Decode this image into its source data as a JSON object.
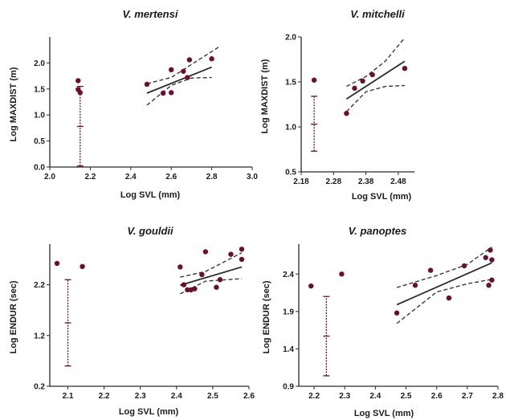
{
  "chart_data": [
    {
      "type": "scatter",
      "title": "V. mertensi",
      "xlabel": "Log SVL (mm)",
      "ylabel": "Log MAXDIST (m)",
      "xlim": [
        2.0,
        3.0
      ],
      "ylim": [
        0.0,
        2.5
      ],
      "xticks": [
        "2.0",
        "2.2",
        "2.4",
        "2.6",
        "2.8",
        "3.0"
      ],
      "yticks": [
        "0.0",
        "0.5",
        "1.0",
        "1.5",
        "2.0"
      ],
      "x": [
        2.48,
        2.56,
        2.6,
        2.6,
        2.66,
        2.68,
        2.69,
        2.8
      ],
      "y": [
        1.59,
        1.42,
        1.43,
        1.87,
        1.84,
        1.72,
        2.06,
        2.08
      ],
      "outlier_x": [
        2.14,
        2.14,
        2.15
      ],
      "outlier_y": [
        1.66,
        1.49,
        1.43
      ],
      "fit": {
        "x": [
          2.48,
          2.8
        ],
        "y": [
          1.42,
          1.92
        ]
      },
      "ci_upper": [
        [
          2.48,
          1.6
        ],
        [
          2.6,
          1.72
        ],
        [
          2.7,
          1.97
        ],
        [
          2.84,
          2.32
        ]
      ],
      "ci_lower": [
        [
          2.48,
          1.19
        ],
        [
          2.6,
          1.57
        ],
        [
          2.7,
          1.71
        ],
        [
          2.8,
          1.72
        ]
      ],
      "errorbar": {
        "x": 2.15,
        "mean": 0.78,
        "low": 0.02,
        "high": 1.55
      }
    },
    {
      "type": "scatter",
      "title": "V. mitchelli",
      "xlabel": "Log SVL (mm)",
      "ylabel": "Log MAXDIST (m)",
      "xlim": [
        2.18,
        2.53
      ],
      "ylim": [
        0.5,
        2.0
      ],
      "xticks": [
        "2.18",
        "2.28",
        "2.38",
        "2.48"
      ],
      "xtick_values": [
        2.18,
        2.28,
        2.38,
        2.48
      ],
      "yticks": [
        "0.5",
        "1.0",
        "1.5",
        "2.0"
      ],
      "x": [
        2.32,
        2.345,
        2.37,
        2.4,
        2.5
      ],
      "y": [
        1.15,
        1.43,
        1.51,
        1.58,
        1.65
      ],
      "outlier_x": [
        2.22
      ],
      "outlier_y": [
        1.52
      ],
      "fit": {
        "x": [
          2.32,
          2.5
        ],
        "y": [
          1.31,
          1.73
        ]
      },
      "ci_upper": [
        [
          2.32,
          1.45
        ],
        [
          2.38,
          1.56
        ],
        [
          2.44,
          1.73
        ],
        [
          2.5,
          1.99
        ]
      ],
      "ci_lower": [
        [
          2.32,
          1.17
        ],
        [
          2.38,
          1.39
        ],
        [
          2.44,
          1.45
        ],
        [
          2.5,
          1.46
        ]
      ],
      "errorbar": {
        "x": 2.22,
        "mean": 1.03,
        "low": 0.73,
        "high": 1.34
      }
    },
    {
      "type": "scatter",
      "title": "V. gouldii",
      "xlabel": "Log SVL (mm)",
      "ylabel": "Log ENDUR (sec)",
      "xlim": [
        2.05,
        2.6
      ],
      "ylim": [
        0.2,
        3.0
      ],
      "xticks": [
        "2.1",
        "2.2",
        "2.3",
        "2.4",
        "2.5",
        "2.6"
      ],
      "yticks": [
        "0.2",
        "1.2",
        "2.2"
      ],
      "ytick_values": [
        0.2,
        1.2,
        2.2
      ],
      "x": [
        2.41,
        2.42,
        2.43,
        2.44,
        2.45,
        2.47,
        2.48,
        2.51,
        2.52,
        2.55,
        2.58,
        2.58
      ],
      "y": [
        2.55,
        2.2,
        2.1,
        2.1,
        2.12,
        2.4,
        2.85,
        2.15,
        2.3,
        2.8,
        2.7,
        2.9
      ],
      "outlier_x": [
        2.07,
        2.14
      ],
      "outlier_y": [
        2.62,
        2.56
      ],
      "fit": {
        "x": [
          2.41,
          2.58
        ],
        "y": [
          2.19,
          2.55
        ]
      },
      "ci_upper": [
        [
          2.41,
          2.35
        ],
        [
          2.48,
          2.46
        ],
        [
          2.58,
          2.83
        ]
      ],
      "ci_lower": [
        [
          2.41,
          2.02
        ],
        [
          2.48,
          2.27
        ],
        [
          2.58,
          2.32
        ]
      ],
      "errorbar": {
        "x": 2.1,
        "mean": 1.45,
        "low": 0.6,
        "high": 2.3
      }
    },
    {
      "type": "scatter",
      "title": "V. panoptes",
      "xlabel": "Log SVL (mm)",
      "ylabel": "Log ENDUR (sec)",
      "xlim": [
        2.15,
        2.8
      ],
      "ylim": [
        0.9,
        2.8
      ],
      "xticks": [
        "2.2",
        "2.3",
        "2.4",
        "2.5",
        "2.6",
        "2.7",
        "2.8"
      ],
      "yticks": [
        "0.9",
        "1.4",
        "1.9",
        "2.4"
      ],
      "ytick_values": [
        0.9,
        1.4,
        1.9,
        2.4
      ],
      "x": [
        2.47,
        2.53,
        2.58,
        2.64,
        2.69,
        2.76,
        2.77,
        2.775,
        2.78,
        2.78
      ],
      "y": [
        1.88,
        2.25,
        2.45,
        2.08,
        2.51,
        2.62,
        2.25,
        2.72,
        2.32,
        2.59
      ],
      "outlier_x": [
        2.19,
        2.29
      ],
      "outlier_y": [
        2.24,
        2.4
      ],
      "fit": {
        "x": [
          2.47,
          2.78
        ],
        "y": [
          1.99,
          2.55
        ]
      },
      "ci_upper": [
        [
          2.47,
          2.22
        ],
        [
          2.6,
          2.38
        ],
        [
          2.7,
          2.53
        ],
        [
          2.78,
          2.76
        ]
      ],
      "ci_lower": [
        [
          2.47,
          1.74
        ],
        [
          2.6,
          2.16
        ],
        [
          2.7,
          2.27
        ],
        [
          2.78,
          2.33
        ]
      ],
      "errorbar": {
        "x": 2.24,
        "mean": 1.57,
        "low": 1.04,
        "high": 2.1
      }
    }
  ]
}
